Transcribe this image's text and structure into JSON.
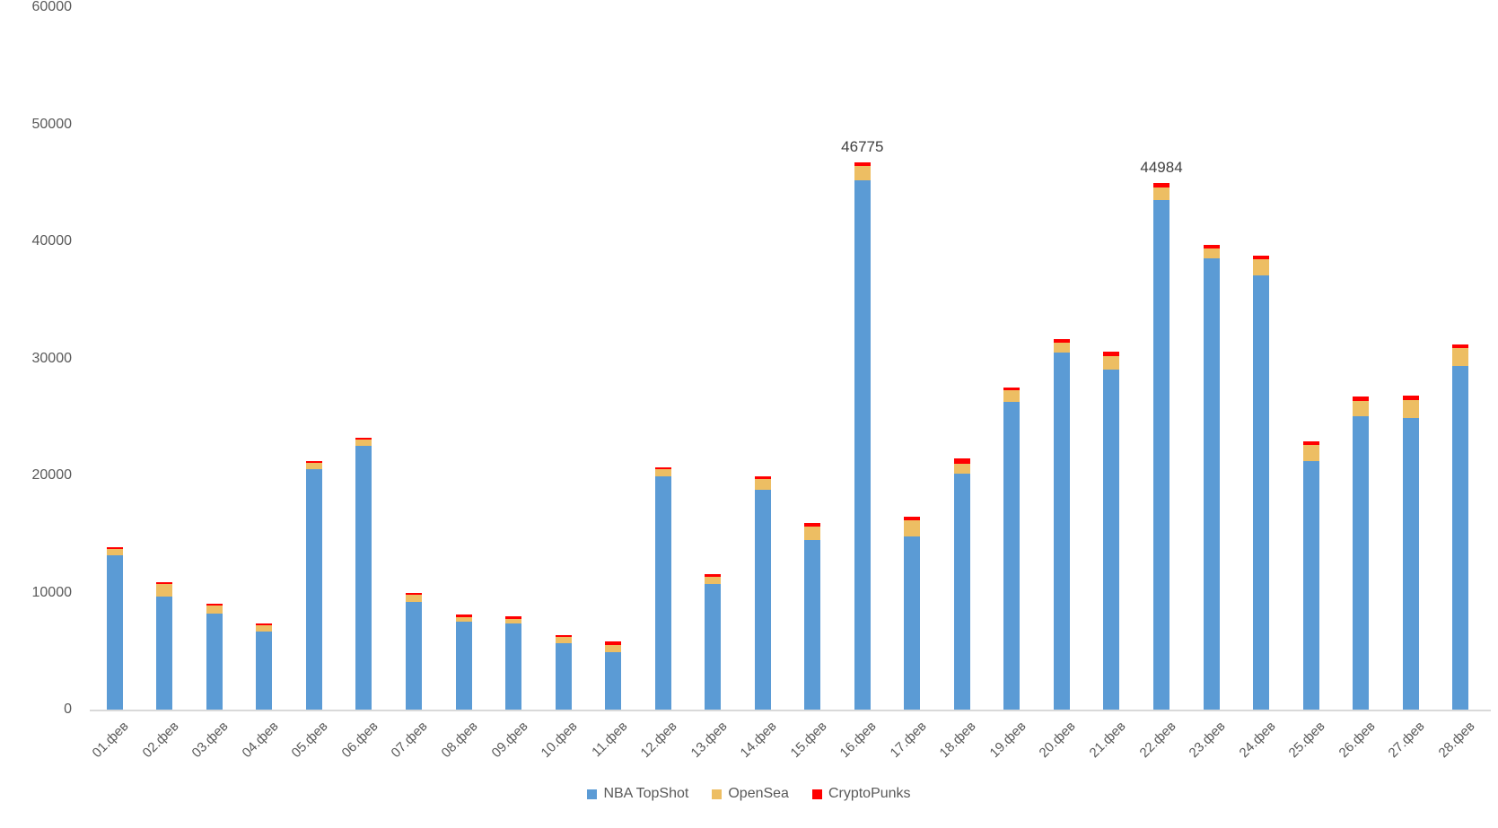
{
  "chart_data": {
    "type": "bar",
    "stacked": true,
    "title": "",
    "xlabel": "",
    "ylabel": "",
    "ylim": [
      0,
      60000
    ],
    "yticks": [
      0,
      10000,
      20000,
      30000,
      40000,
      50000,
      60000
    ],
    "grid": false,
    "legend_position": "bottom",
    "categories": [
      "01.фев",
      "02.фев",
      "03.фев",
      "04.фев",
      "05.фев",
      "06.фев",
      "07.фев",
      "08.фев",
      "09.фев",
      "10.фев",
      "11.фев",
      "12.фев",
      "13.фев",
      "14.фев",
      "15.фев",
      "16.фев",
      "17.фев",
      "18.фев",
      "19.фев",
      "20.фев",
      "21.фев",
      "22.фев",
      "23.фев",
      "24.фев",
      "25.фев",
      "26.фев",
      "27.фев",
      "28.фев"
    ],
    "series": [
      {
        "name": "NBA TopShot",
        "color": "#5B9BD5",
        "values": [
          13200,
          9650,
          8220,
          6640,
          20500,
          22540,
          9170,
          7480,
          7350,
          5650,
          4880,
          19920,
          10750,
          18770,
          14450,
          45200,
          14760,
          20120,
          26250,
          30510,
          29010,
          43530,
          38550,
          37100,
          21200,
          25030,
          24900,
          29320
        ]
      },
      {
        "name": "OpenSea",
        "color": "#EDBE63",
        "values": [
          480,
          1050,
          690,
          560,
          560,
          510,
          610,
          410,
          380,
          560,
          660,
          590,
          610,
          900,
          1200,
          1270,
          1380,
          840,
          1020,
          840,
          1200,
          1070,
          840,
          1400,
          1400,
          1350,
          1530,
          1530
        ]
      },
      {
        "name": "CryptoPunks",
        "color": "#FF0000",
        "values": [
          180,
          150,
          150,
          150,
          150,
          180,
          200,
          230,
          230,
          180,
          300,
          200,
          210,
          280,
          310,
          305,
          350,
          510,
          250,
          310,
          380,
          384,
          340,
          270,
          330,
          360,
          380,
          330
        ]
      }
    ],
    "annotations": [
      {
        "category_index": 15,
        "text": "46775"
      },
      {
        "category_index": 21,
        "text": "44984"
      }
    ],
    "colors": {
      "axis_line": "#d9d9d9",
      "tick_text": "#595959",
      "data_label_text": "#404040"
    }
  }
}
